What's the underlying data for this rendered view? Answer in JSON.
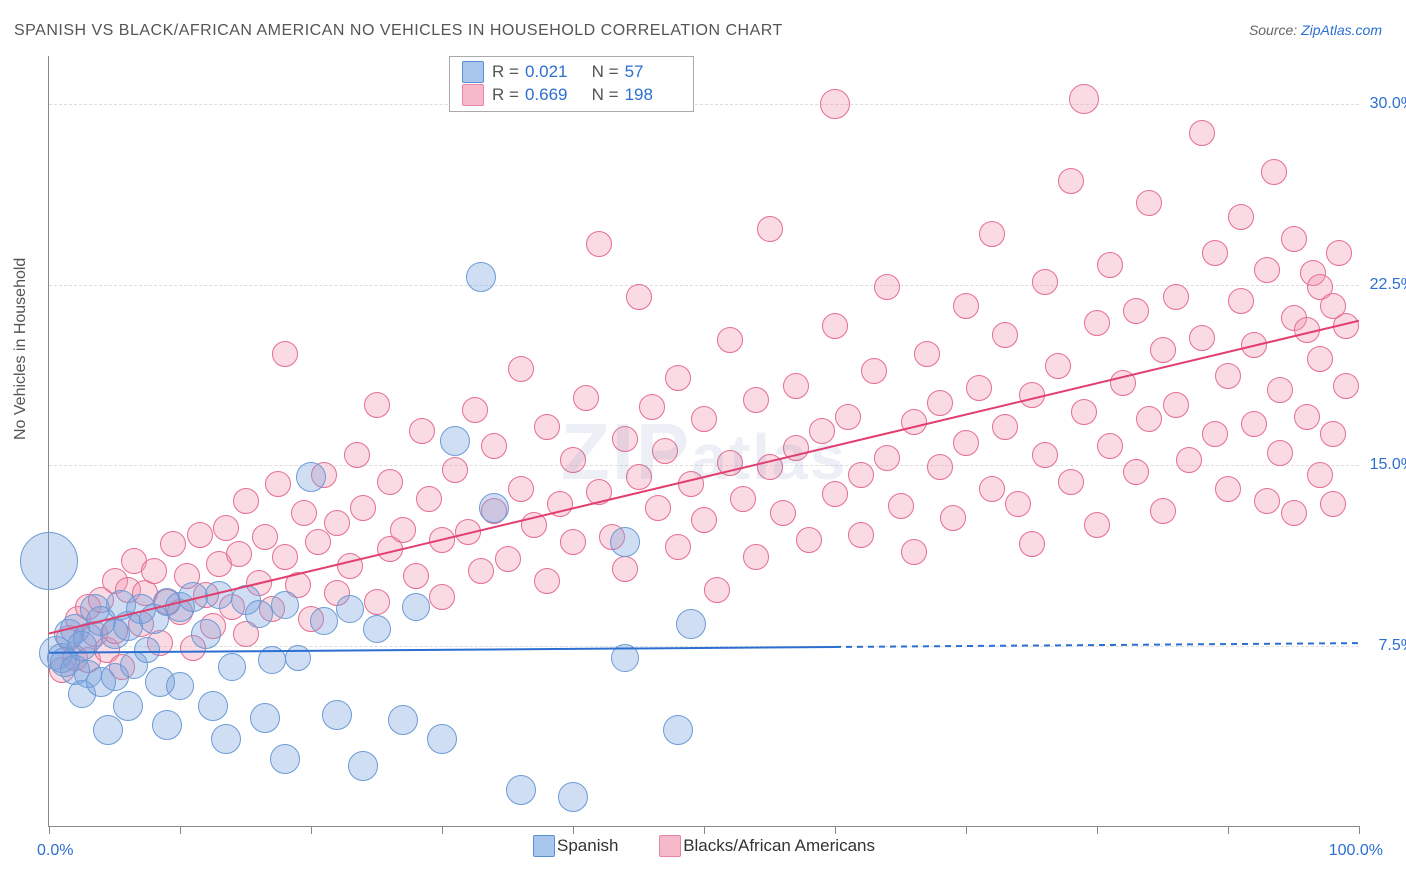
{
  "title": "SPANISH VS BLACK/AFRICAN AMERICAN NO VEHICLES IN HOUSEHOLD CORRELATION CHART",
  "source_prefix": "Source: ",
  "source_link": "ZipAtlas.com",
  "y_axis_title": "No Vehicles in Household",
  "watermark": "ZIPatlas",
  "chart": {
    "type": "scatter",
    "xlim": [
      0,
      100
    ],
    "ylim": [
      0,
      32
    ],
    "x_ticks": [
      0,
      10,
      20,
      30,
      40,
      50,
      60,
      70,
      80,
      90,
      100
    ],
    "x_tick_labels": {
      "0": "0.0%",
      "100": "100.0%"
    },
    "y_gridlines": [
      7.5,
      15.0,
      22.5,
      30.0
    ],
    "y_tick_labels": [
      "7.5%",
      "15.0%",
      "22.5%",
      "30.0%"
    ],
    "background_color": "#ffffff",
    "grid_color": "#dddddd",
    "axis_color": "#888888",
    "label_color": "#2c6fd1",
    "label_fontsize": 16
  },
  "series": {
    "spanish": {
      "label": "Spanish",
      "fill": "rgba(120,160,220,0.35)",
      "stroke": "#6b9bd6",
      "swatch_fill": "#a9c6ec",
      "swatch_border": "#5a8fd6",
      "R": "0.021",
      "N": "57",
      "marker_radius": 12,
      "trend": {
        "color": "#2c6fd1",
        "width": 2,
        "y0": 7.2,
        "y100": 7.6,
        "solid_until_x": 60
      }
    },
    "black": {
      "label": "Blacks/African Americans",
      "fill": "rgba(240,150,175,0.35)",
      "stroke": "#e56f93",
      "swatch_fill": "#f5b9ca",
      "swatch_border": "#e884a5",
      "R": "0.669",
      "N": "198",
      "marker_radius": 12,
      "trend": {
        "color": "#e23e6e",
        "width": 2,
        "y0": 8.0,
        "y100": 21.0,
        "solid_until_x": 100
      }
    }
  },
  "points": {
    "spanish": [
      [
        0,
        11,
        28
      ],
      [
        0.5,
        7.2,
        16
      ],
      [
        1,
        7,
        14
      ],
      [
        1.2,
        6.8,
        14
      ],
      [
        1.5,
        8,
        14
      ],
      [
        2,
        8.2,
        14
      ],
      [
        2,
        6.5,
        14
      ],
      [
        2.5,
        7.5,
        14
      ],
      [
        2.5,
        5.5,
        13
      ],
      [
        3,
        7.8,
        14
      ],
      [
        3,
        6.3,
        13
      ],
      [
        3.5,
        9,
        14
      ],
      [
        4,
        8.5,
        14
      ],
      [
        4,
        6,
        14
      ],
      [
        4.5,
        4,
        14
      ],
      [
        5,
        8,
        14
      ],
      [
        5,
        6.2,
        13
      ],
      [
        5.5,
        9.2,
        14
      ],
      [
        6,
        8.3,
        14
      ],
      [
        6,
        5,
        14
      ],
      [
        6.5,
        6.7,
        13
      ],
      [
        7,
        9,
        14
      ],
      [
        7.5,
        7.3,
        12
      ],
      [
        8,
        8.6,
        14
      ],
      [
        8.5,
        6,
        14
      ],
      [
        9,
        9.3,
        13
      ],
      [
        9,
        4.2,
        14
      ],
      [
        10,
        9.1,
        14
      ],
      [
        10,
        5.8,
        13
      ],
      [
        11,
        9.5,
        14
      ],
      [
        12,
        8,
        14
      ],
      [
        12.5,
        5,
        14
      ],
      [
        13,
        9.6,
        13
      ],
      [
        13.5,
        3.6,
        14
      ],
      [
        14,
        6.6,
        13
      ],
      [
        15,
        9.4,
        14
      ],
      [
        16,
        8.8,
        13
      ],
      [
        16.5,
        4.5,
        14
      ],
      [
        17,
        6.9,
        13
      ],
      [
        18,
        9.2,
        13
      ],
      [
        18,
        2.8,
        14
      ],
      [
        19,
        7,
        12
      ],
      [
        20,
        14.5,
        14
      ],
      [
        21,
        8.5,
        13
      ],
      [
        22,
        4.6,
        14
      ],
      [
        23,
        9,
        13
      ],
      [
        24,
        2.5,
        14
      ],
      [
        25,
        8.2,
        13
      ],
      [
        27,
        4.4,
        14
      ],
      [
        28,
        9.1,
        13
      ],
      [
        30,
        3.6,
        14
      ],
      [
        31,
        16,
        14
      ],
      [
        33,
        22.8,
        14
      ],
      [
        34,
        13.2,
        14
      ],
      [
        36,
        1.5,
        14
      ],
      [
        40,
        1.2,
        14
      ],
      [
        44,
        7,
        13
      ],
      [
        44,
        11.8,
        14
      ],
      [
        48,
        4,
        14
      ],
      [
        49,
        8.4,
        14
      ]
    ],
    "black": [
      [
        1,
        6.5,
        12
      ],
      [
        1.5,
        7.8,
        12
      ],
      [
        2,
        7,
        12
      ],
      [
        2.2,
        8.6,
        12
      ],
      [
        3,
        9.1,
        12
      ],
      [
        3,
        6.9,
        12
      ],
      [
        3.5,
        8,
        12
      ],
      [
        4,
        9.4,
        12
      ],
      [
        4.4,
        7.3,
        12
      ],
      [
        5,
        10.2,
        12
      ],
      [
        5,
        8.1,
        12
      ],
      [
        5.6,
        6.6,
        12
      ],
      [
        6,
        9.8,
        12
      ],
      [
        6.5,
        11,
        12
      ],
      [
        7,
        8.4,
        12
      ],
      [
        7.3,
        9.7,
        12
      ],
      [
        8,
        10.6,
        12
      ],
      [
        8.5,
        7.6,
        12
      ],
      [
        9,
        9.3,
        12
      ],
      [
        9.5,
        11.7,
        12
      ],
      [
        10,
        8.9,
        12
      ],
      [
        10.5,
        10.4,
        12
      ],
      [
        11,
        7.4,
        12
      ],
      [
        11.5,
        12.1,
        12
      ],
      [
        12,
        9.6,
        12
      ],
      [
        12.5,
        8.3,
        12
      ],
      [
        13,
        10.9,
        12
      ],
      [
        13.5,
        12.4,
        12
      ],
      [
        14,
        9.1,
        12
      ],
      [
        14.5,
        11.3,
        12
      ],
      [
        15,
        8,
        12
      ],
      [
        15,
        13.5,
        12
      ],
      [
        16,
        10.1,
        12
      ],
      [
        16.5,
        12,
        12
      ],
      [
        17,
        9,
        12
      ],
      [
        17.5,
        14.2,
        12
      ],
      [
        18,
        11.2,
        12
      ],
      [
        18,
        19.6,
        12
      ],
      [
        19,
        10,
        12
      ],
      [
        19.5,
        13,
        12
      ],
      [
        20,
        8.6,
        12
      ],
      [
        20.5,
        11.8,
        12
      ],
      [
        21,
        14.6,
        12
      ],
      [
        22,
        9.7,
        12
      ],
      [
        22,
        12.6,
        12
      ],
      [
        23,
        10.8,
        12
      ],
      [
        23.5,
        15.4,
        12
      ],
      [
        24,
        13.2,
        12
      ],
      [
        25,
        9.3,
        12
      ],
      [
        25,
        17.5,
        12
      ],
      [
        26,
        11.5,
        12
      ],
      [
        26,
        14.3,
        12
      ],
      [
        27,
        12.3,
        12
      ],
      [
        28,
        10.4,
        12
      ],
      [
        28.5,
        16.4,
        12
      ],
      [
        29,
        13.6,
        12
      ],
      [
        30,
        11.9,
        12
      ],
      [
        30,
        9.5,
        12
      ],
      [
        31,
        14.8,
        12
      ],
      [
        32,
        12.2,
        12
      ],
      [
        32.5,
        17.3,
        12
      ],
      [
        33,
        10.6,
        12
      ],
      [
        34,
        13.1,
        12
      ],
      [
        34,
        15.8,
        12
      ],
      [
        35,
        11.1,
        12
      ],
      [
        36,
        14,
        12
      ],
      [
        36,
        19,
        12
      ],
      [
        37,
        12.5,
        12
      ],
      [
        38,
        16.6,
        12
      ],
      [
        38,
        10.2,
        12
      ],
      [
        39,
        13.4,
        12
      ],
      [
        40,
        15.2,
        12
      ],
      [
        40,
        11.8,
        12
      ],
      [
        41,
        17.8,
        12
      ],
      [
        42,
        24.2,
        12
      ],
      [
        42,
        13.9,
        12
      ],
      [
        43,
        12,
        12
      ],
      [
        44,
        16.1,
        12
      ],
      [
        44,
        10.7,
        12
      ],
      [
        45,
        14.5,
        12
      ],
      [
        45,
        22,
        12
      ],
      [
        46,
        17.4,
        12
      ],
      [
        46.5,
        13.2,
        12
      ],
      [
        47,
        15.6,
        12
      ],
      [
        48,
        11.6,
        12
      ],
      [
        48,
        18.6,
        12
      ],
      [
        49,
        14.2,
        12
      ],
      [
        50,
        16.9,
        12
      ],
      [
        50,
        12.7,
        12
      ],
      [
        51,
        9.8,
        12
      ],
      [
        52,
        15.1,
        12
      ],
      [
        52,
        20.2,
        12
      ],
      [
        53,
        13.6,
        12
      ],
      [
        54,
        17.7,
        12
      ],
      [
        54,
        11.2,
        12
      ],
      [
        55,
        14.9,
        12
      ],
      [
        55,
        24.8,
        12
      ],
      [
        56,
        13,
        12
      ],
      [
        57,
        18.3,
        12
      ],
      [
        57,
        15.7,
        12
      ],
      [
        58,
        11.9,
        12
      ],
      [
        59,
        16.4,
        12
      ],
      [
        60,
        13.8,
        12
      ],
      [
        60,
        20.8,
        12
      ],
      [
        60,
        30,
        14
      ],
      [
        61,
        17,
        12
      ],
      [
        62,
        14.6,
        12
      ],
      [
        62,
        12.1,
        12
      ],
      [
        63,
        18.9,
        12
      ],
      [
        64,
        15.3,
        12
      ],
      [
        64,
        22.4,
        12
      ],
      [
        65,
        13.3,
        12
      ],
      [
        66,
        16.8,
        12
      ],
      [
        66,
        11.4,
        12
      ],
      [
        67,
        19.6,
        12
      ],
      [
        68,
        14.9,
        12
      ],
      [
        68,
        17.6,
        12
      ],
      [
        69,
        12.8,
        12
      ],
      [
        70,
        21.6,
        12
      ],
      [
        70,
        15.9,
        12
      ],
      [
        71,
        18.2,
        12
      ],
      [
        72,
        14,
        12
      ],
      [
        72,
        24.6,
        12
      ],
      [
        73,
        16.6,
        12
      ],
      [
        73,
        20.4,
        12
      ],
      [
        74,
        13.4,
        12
      ],
      [
        75,
        17.9,
        12
      ],
      [
        75,
        11.7,
        12
      ],
      [
        76,
        22.6,
        12
      ],
      [
        76,
        15.4,
        12
      ],
      [
        77,
        19.1,
        12
      ],
      [
        78,
        14.3,
        12
      ],
      [
        78,
        26.8,
        12
      ],
      [
        79,
        17.2,
        12
      ],
      [
        79,
        30.2,
        14
      ],
      [
        80,
        20.9,
        12
      ],
      [
        80,
        12.5,
        12
      ],
      [
        81,
        15.8,
        12
      ],
      [
        81,
        23.3,
        12
      ],
      [
        82,
        18.4,
        12
      ],
      [
        83,
        14.7,
        12
      ],
      [
        83,
        21.4,
        12
      ],
      [
        84,
        16.9,
        12
      ],
      [
        84,
        25.9,
        12
      ],
      [
        85,
        19.8,
        12
      ],
      [
        85,
        13.1,
        12
      ],
      [
        86,
        17.5,
        12
      ],
      [
        86,
        22,
        12
      ],
      [
        87,
        15.2,
        12
      ],
      [
        88,
        20.3,
        12
      ],
      [
        88,
        28.8,
        12
      ],
      [
        89,
        16.3,
        12
      ],
      [
        89,
        23.8,
        12
      ],
      [
        90,
        14,
        12
      ],
      [
        90,
        18.7,
        12
      ],
      [
        91,
        21.8,
        12
      ],
      [
        91,
        25.3,
        12
      ],
      [
        92,
        16.7,
        12
      ],
      [
        92,
        20,
        12
      ],
      [
        93,
        13.5,
        12
      ],
      [
        93,
        23.1,
        12
      ],
      [
        93.5,
        27.2,
        12
      ],
      [
        94,
        18.1,
        12
      ],
      [
        94,
        15.5,
        12
      ],
      [
        95,
        21.1,
        12
      ],
      [
        95,
        24.4,
        12
      ],
      [
        95,
        13,
        12
      ],
      [
        96,
        17,
        12
      ],
      [
        96,
        20.6,
        12
      ],
      [
        96.5,
        23,
        12
      ],
      [
        97,
        14.6,
        12
      ],
      [
        97,
        19.4,
        12
      ],
      [
        97,
        22.4,
        12
      ],
      [
        98,
        16.3,
        12
      ],
      [
        98,
        21.6,
        12
      ],
      [
        98,
        13.4,
        12
      ],
      [
        98.5,
        23.8,
        12
      ],
      [
        99,
        18.3,
        12
      ],
      [
        99,
        20.8,
        12
      ]
    ]
  }
}
